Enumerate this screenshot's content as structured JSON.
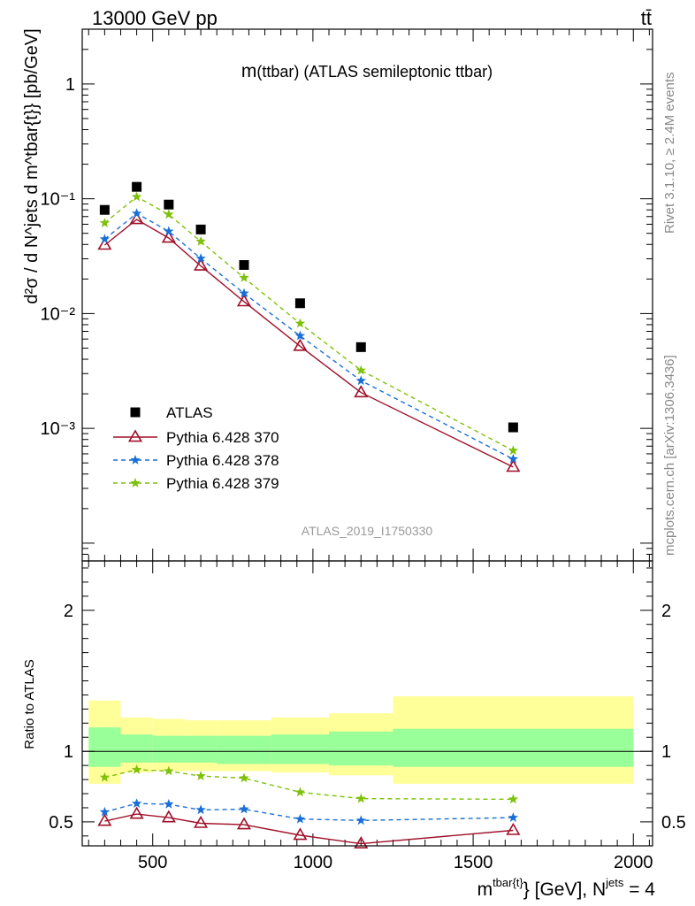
{
  "header": {
    "left": "13000 GeV pp",
    "right": "tt̄"
  },
  "side_text": {
    "rivet": "Rivet 3.1.10, ≥ 2.4M events",
    "mcplots": "mcplots.cern.ch [arXiv:1306.3436]"
  },
  "analysis_id": "ATLAS_2019_I1750330",
  "colors": {
    "data": "#000000",
    "p370": "#a0102a",
    "p378": "#1a6fd6",
    "p379": "#7ec10a",
    "band_inner": "#99ff99",
    "band_outer": "#ffff99"
  },
  "chart_data": [
    {
      "type": "scatter",
      "panel": "main",
      "title_main": "m",
      "title_rest": "(ttbar) (ATLAS semileptonic ttbar)",
      "ylabel": "d²σ / d N^jets d m^tbar{t}} [pb/GeV]",
      "yscale": "log",
      "xlim": [
        280,
        2060
      ],
      "ylim": [
        7e-05,
        3
      ],
      "y_tick_labels": [
        "10⁻³",
        "10⁻²",
        "10⁻¹",
        "1"
      ],
      "y_tick_values": [
        0.001,
        0.01,
        0.1,
        1
      ],
      "x": [
        350,
        450,
        550,
        650,
        785,
        960,
        1150,
        1625
      ],
      "series": [
        {
          "name": "ATLAS",
          "key": "data",
          "values": [
            0.08,
            0.127,
            0.089,
            0.054,
            0.0265,
            0.0123,
            0.0051,
            0.00102
          ]
        },
        {
          "name": "Pythia 6.428 370",
          "key": "p370",
          "values": [
            0.0395,
            0.066,
            0.0455,
            0.026,
            0.0127,
            0.0052,
            0.00205,
            0.00046
          ]
        },
        {
          "name": "Pythia 6.428 378",
          "key": "p378",
          "values": [
            0.0445,
            0.0745,
            0.052,
            0.0302,
            0.015,
            0.0064,
            0.0026,
            0.00054
          ]
        },
        {
          "name": "Pythia 6.428 379",
          "key": "p379",
          "values": [
            0.0615,
            0.104,
            0.073,
            0.0425,
            0.0205,
            0.0082,
            0.0032,
            0.00064
          ]
        }
      ],
      "legend_position": "lower-left"
    },
    {
      "type": "scatter",
      "panel": "ratio",
      "ylabel": "Ratio to ATLAS",
      "xlabel_main": "m",
      "xlabel_sup": "tbar{t}",
      "xlabel_rest": "} [GeV], N",
      "xlabel_sup2": "jets",
      "xlabel_tail": " = 4",
      "xlim": [
        280,
        2060
      ],
      "ylim": [
        0.33,
        2.35
      ],
      "x_tick_labels": [
        "500",
        "1000",
        "1500",
        "2000"
      ],
      "x_tick_values": [
        500,
        1000,
        1500,
        2000
      ],
      "y_tick_labels": [
        "0.5",
        "1",
        "2"
      ],
      "y_tick_values": [
        0.5,
        1,
        2
      ],
      "x": [
        350,
        450,
        550,
        650,
        785,
        960,
        1150,
        1625
      ],
      "band_edges": [
        300,
        400,
        500,
        600,
        700,
        870,
        1050,
        1250,
        2000
      ],
      "band_inner": [
        [
          0.89,
          1.17
        ],
        [
          0.92,
          1.12
        ],
        [
          0.92,
          1.11
        ],
        [
          0.92,
          1.11
        ],
        [
          0.91,
          1.11
        ],
        [
          0.91,
          1.12
        ],
        [
          0.9,
          1.14
        ],
        [
          0.89,
          1.16
        ]
      ],
      "band_outer": [
        [
          0.77,
          1.36
        ],
        [
          0.85,
          1.24
        ],
        [
          0.86,
          1.23
        ],
        [
          0.86,
          1.22
        ],
        [
          0.86,
          1.22
        ],
        [
          0.85,
          1.24
        ],
        [
          0.83,
          1.27
        ],
        [
          0.77,
          1.39
        ]
      ],
      "series": [
        {
          "name": "Pythia 6.428 370",
          "key": "p370",
          "values": [
            0.505,
            0.555,
            0.53,
            0.49,
            0.48,
            0.405,
            0.345,
            0.44
          ]
        },
        {
          "name": "Pythia 6.428 378",
          "key": "p378",
          "values": [
            0.57,
            0.63,
            0.625,
            0.585,
            0.59,
            0.52,
            0.51,
            0.53
          ]
        },
        {
          "name": "Pythia 6.428 379",
          "key": "p379",
          "values": [
            0.815,
            0.87,
            0.86,
            0.825,
            0.81,
            0.71,
            0.665,
            0.66
          ]
        }
      ]
    }
  ]
}
